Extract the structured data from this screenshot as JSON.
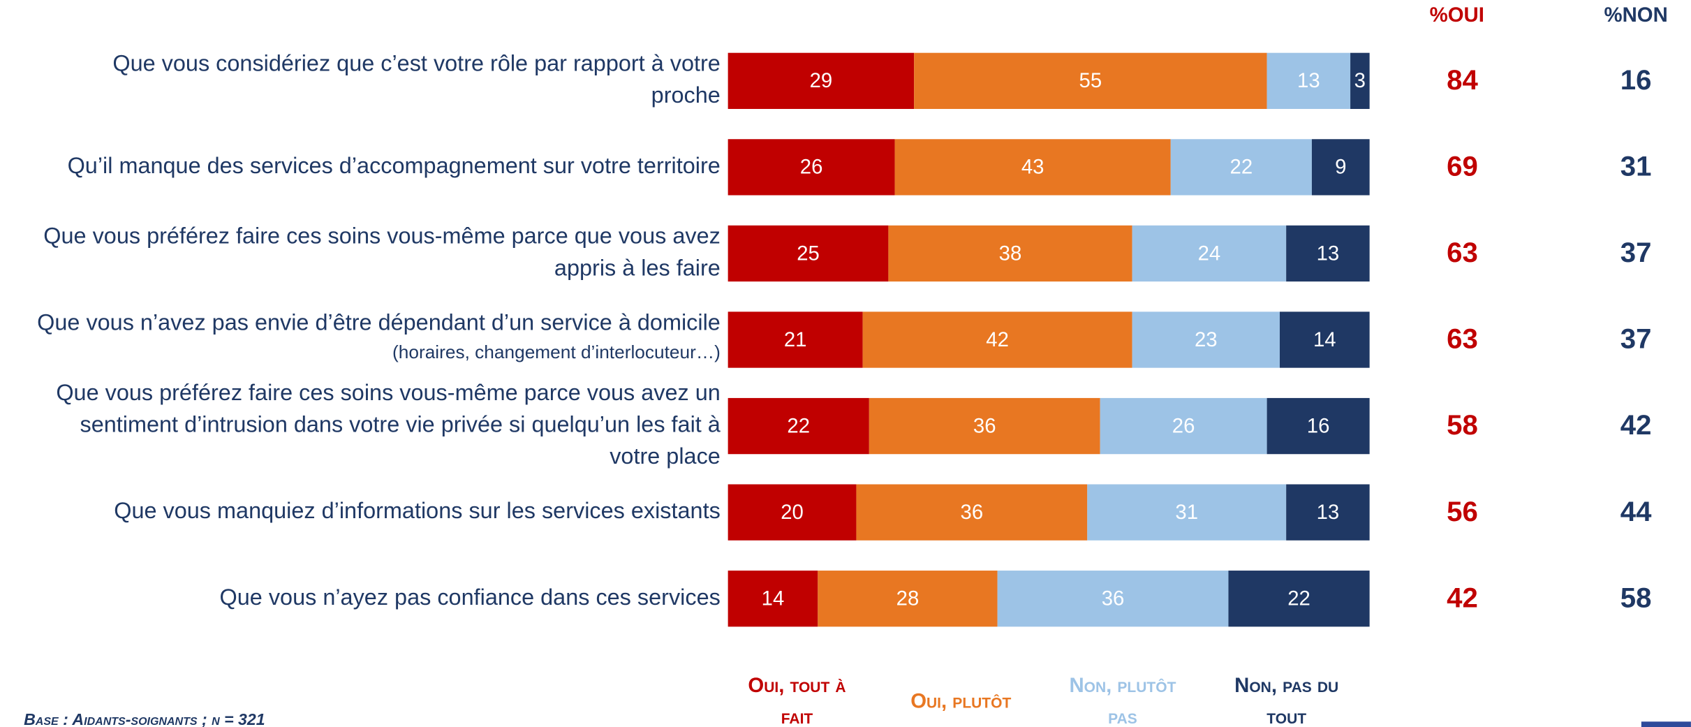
{
  "chart_data": {
    "type": "stacked_bar_horizontal",
    "categories": [
      [
        "Que vous considériez que c’est votre rôle par rapport à votre",
        "proche"
      ],
      [
        "Qu’il manque des services d’accompagnement sur votre territoire"
      ],
      [
        "Que vous préférez faire ces soins vous-même parce que vous avez",
        "appris à les faire"
      ],
      [
        "Que vous n’avez pas envie d’être dépendant d’un service à domicile"
      ],
      [
        "Que vous préférez faire ces soins vous-même parce vous avez un",
        "sentiment d’intrusion dans votre vie privée si quelqu’un les fait à",
        "votre place"
      ],
      [
        "Que vous manquiez d’informations sur les services existants"
      ],
      [
        "Que vous n’ayez pas confiance dans ces services"
      ]
    ],
    "category_notes": [
      null,
      null,
      null,
      "(horaires, changement d’interlocuteur…)",
      null,
      null,
      null
    ],
    "series": [
      {
        "name": "Oui, tout à fait",
        "color": "#c00000",
        "values": [
          29,
          26,
          25,
          21,
          22,
          20,
          14
        ]
      },
      {
        "name": "Oui, plutôt",
        "color": "#e87722",
        "values": [
          55,
          43,
          38,
          42,
          36,
          36,
          28
        ]
      },
      {
        "name": "Non, plutôt pas",
        "color": "#9dc3e6",
        "values": [
          13,
          22,
          24,
          23,
          26,
          31,
          36
        ]
      },
      {
        "name": "Non, pas du tout",
        "color": "#1f3864",
        "values": [
          3,
          9,
          13,
          14,
          16,
          13,
          22
        ]
      }
    ],
    "xlim": [
      0,
      100
    ],
    "totals": [
      {
        "header": "%OUI",
        "color": "#c00000",
        "values": [
          84,
          69,
          63,
          63,
          58,
          56,
          42
        ]
      },
      {
        "header": "%NON",
        "color": "#1f3864",
        "values": [
          16,
          31,
          37,
          37,
          42,
          44,
          58
        ]
      }
    ],
    "footnote": "Base : Aidants-soignants ; n = 321"
  }
}
